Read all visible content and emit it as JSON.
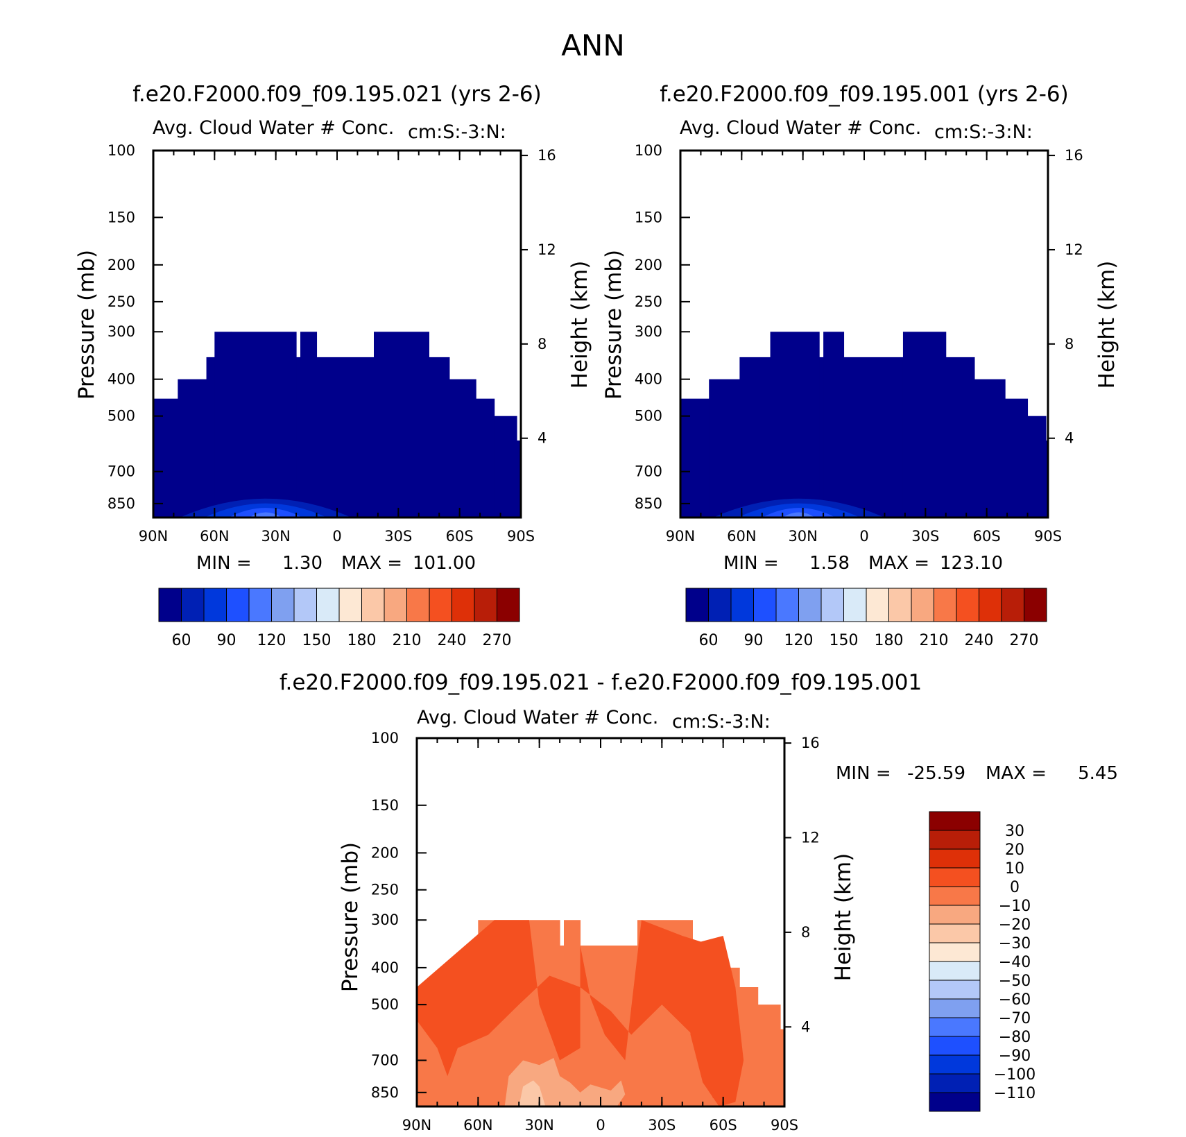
{
  "figure": {
    "title": "ANN",
    "variable_title": "Avg. Cloud Water # Conc.",
    "units_label": "cm:S:-3:N:"
  },
  "palette_colors": [
    "#00008b",
    "#0020b4",
    "#0038dc",
    "#1e50ff",
    "#4a78ff",
    "#7fa0f0",
    "#b3c8f8",
    "#d9eaf8",
    "#fde8d4",
    "#fbc8a8",
    "#f8a880",
    "#f87848",
    "#f45020",
    "#de3008",
    "#b81e08",
    "#8b0000"
  ],
  "chart_data": [
    {
      "type": "heatmap",
      "panel": "case1",
      "title": "f.e20.F2000.f09_f09.195.021 (yrs 2-6)",
      "subtitle": "Avg. Cloud Water # Conc.",
      "units": "cm:S:-3:N:",
      "ylabel": "Pressure (mb)",
      "ylabel_right": "Height (km)",
      "x_ticks": [
        "90N",
        "60N",
        "30N",
        "0",
        "30S",
        "60S",
        "90S"
      ],
      "y_ticks": [
        100,
        150,
        200,
        250,
        300,
        400,
        500,
        700,
        850
      ],
      "y_ticks_right": [
        16,
        12,
        8,
        4
      ],
      "xlim": [
        90,
        -90
      ],
      "ylim": [
        100,
        925
      ],
      "y_scale": "log",
      "min_label": "MIN =",
      "min_value": "1.30",
      "max_label": "MAX =",
      "max_value": "101.00",
      "colorbar_levels": [
        60,
        90,
        120,
        150,
        180,
        210,
        240,
        270
      ],
      "colorbar_orientation": "horizontal",
      "cloud_top_profile": [
        {
          "lat_start": 90,
          "lat_end": 78,
          "top_mb": 450
        },
        {
          "lat_start": 78,
          "lat_end": 64,
          "top_mb": 400
        },
        {
          "lat_start": 64,
          "lat_end": 60,
          "top_mb": 350
        },
        {
          "lat_start": 60,
          "lat_end": 52,
          "top_mb": 300
        },
        {
          "lat_start": 52,
          "lat_end": 20,
          "top_mb": 300
        },
        {
          "lat_start": 20,
          "lat_end": 18,
          "top_mb": 350
        },
        {
          "lat_start": 18,
          "lat_end": 10,
          "top_mb": 300
        },
        {
          "lat_start": 10,
          "lat_end": -18,
          "top_mb": 350
        },
        {
          "lat_start": -18,
          "lat_end": -45,
          "top_mb": 300
        },
        {
          "lat_start": -45,
          "lat_end": -55,
          "top_mb": 350
        },
        {
          "lat_start": -55,
          "lat_end": -68,
          "top_mb": 400
        },
        {
          "lat_start": -68,
          "lat_end": -77,
          "top_mb": 450
        },
        {
          "lat_start": -77,
          "lat_end": -88,
          "top_mb": 500
        },
        {
          "lat_start": -88,
          "lat_end": -90,
          "top_mb": 580
        }
      ],
      "lowlevel_maximum": {
        "lat_center": 35,
        "value_range": [
          60,
          120
        ]
      }
    },
    {
      "type": "heatmap",
      "panel": "case2",
      "title": "f.e20.F2000.f09_f09.195.001 (yrs 2-6)",
      "subtitle": "Avg. Cloud Water # Conc.",
      "units": "cm:S:-3:N:",
      "ylabel": "Pressure (mb)",
      "ylabel_right": "Height (km)",
      "x_ticks": [
        "90N",
        "60N",
        "30N",
        "0",
        "30S",
        "60S",
        "90S"
      ],
      "y_ticks": [
        100,
        150,
        200,
        250,
        300,
        400,
        500,
        700,
        850
      ],
      "y_ticks_right": [
        16,
        12,
        8,
        4
      ],
      "xlim": [
        90,
        -90
      ],
      "ylim": [
        100,
        925
      ],
      "y_scale": "log",
      "min_label": "MIN =",
      "min_value": "1.58",
      "max_label": "MAX =",
      "max_value": "123.10",
      "colorbar_levels": [
        60,
        90,
        120,
        150,
        180,
        210,
        240,
        270
      ],
      "colorbar_orientation": "horizontal",
      "cloud_top_profile": [
        {
          "lat_start": 90,
          "lat_end": 76,
          "top_mb": 450
        },
        {
          "lat_start": 76,
          "lat_end": 61,
          "top_mb": 400
        },
        {
          "lat_start": 61,
          "lat_end": 46,
          "top_mb": 350
        },
        {
          "lat_start": 46,
          "lat_end": 22,
          "top_mb": 300
        },
        {
          "lat_start": 22,
          "lat_end": 20,
          "top_mb": 350
        },
        {
          "lat_start": 20,
          "lat_end": 10,
          "top_mb": 300
        },
        {
          "lat_start": 10,
          "lat_end": -19,
          "top_mb": 350
        },
        {
          "lat_start": -19,
          "lat_end": -40,
          "top_mb": 300
        },
        {
          "lat_start": -40,
          "lat_end": -54,
          "top_mb": 350
        },
        {
          "lat_start": -54,
          "lat_end": -69,
          "top_mb": 400
        },
        {
          "lat_start": -69,
          "lat_end": -80,
          "top_mb": 450
        },
        {
          "lat_start": -80,
          "lat_end": -89,
          "top_mb": 500
        },
        {
          "lat_start": -89,
          "lat_end": -90,
          "top_mb": 580
        }
      ],
      "lowlevel_maximum": {
        "lat_center": 32,
        "value_range": [
          60,
          125
        ]
      }
    },
    {
      "type": "heatmap",
      "panel": "difference",
      "title": "f.e20.F2000.f09_f09.195.021 - f.e20.F2000.f09_f09.195.001",
      "subtitle": "Avg. Cloud Water # Conc.",
      "units": "cm:S:-3:N:",
      "ylabel": "Pressure (mb)",
      "ylabel_right": "Height (km)",
      "x_ticks": [
        "90N",
        "60N",
        "30N",
        "0",
        "30S",
        "60S",
        "90S"
      ],
      "y_ticks": [
        100,
        150,
        200,
        250,
        300,
        400,
        500,
        700,
        850
      ],
      "y_ticks_right": [
        16,
        12,
        8,
        4
      ],
      "xlim": [
        90,
        -90
      ],
      "ylim": [
        100,
        925
      ],
      "y_scale": "log",
      "min_label": "MIN =",
      "min_value": "-25.59",
      "max_label": "MAX =",
      "max_value": "5.45",
      "colorbar_levels": [
        30,
        20,
        10,
        0,
        -10,
        -20,
        -30,
        -40,
        -50,
        -60,
        -70,
        -80,
        -90,
        -100,
        -110
      ],
      "colorbar_orientation": "vertical",
      "dominant_value_range": [
        -20,
        0
      ]
    }
  ]
}
